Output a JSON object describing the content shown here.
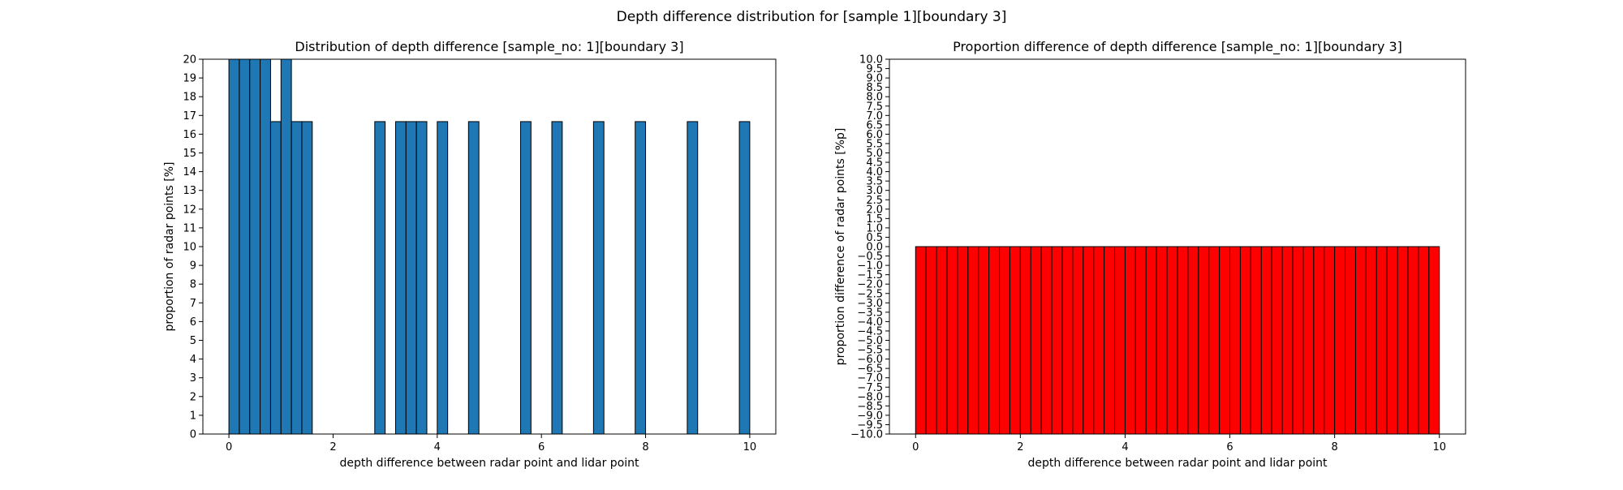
{
  "figure": {
    "suptitle": "Depth difference distribution for [sample 1][boundary 3]"
  },
  "chart_data": [
    {
      "type": "bar",
      "title": "Distribution of depth difference [sample_no: 1][boundary 3]",
      "xlabel": "depth difference between radar point and lidar point",
      "ylabel": "proportion of radar points [%]",
      "xlim": [
        -0.5,
        10.5
      ],
      "ylim": [
        0,
        20
      ],
      "xticks": [
        0,
        2,
        4,
        6,
        8,
        10
      ],
      "yticks": [
        0,
        1,
        2,
        3,
        4,
        5,
        6,
        7,
        8,
        9,
        10,
        11,
        12,
        13,
        14,
        15,
        16,
        17,
        18,
        19,
        20
      ],
      "bin_width": 0.2,
      "bin_starts": [
        0.0,
        0.2,
        0.4,
        0.6,
        0.8,
        1.0,
        1.2,
        1.4,
        2.8,
        3.2,
        3.4,
        3.6,
        4.0,
        4.6,
        5.6,
        6.2,
        7.0,
        7.8,
        8.8,
        9.8
      ],
      "values": [
        20,
        20,
        20,
        20,
        16.67,
        20,
        16.67,
        16.67,
        16.67,
        16.67,
        16.67,
        16.67,
        16.67,
        16.67,
        16.67,
        16.67,
        16.67,
        16.67,
        16.67,
        16.67
      ],
      "bar_color": "#1f77b4",
      "edge_color": "#000000",
      "grid": false,
      "legend": "none"
    },
    {
      "type": "bar",
      "title": "Proportion difference of depth difference [sample_no: 1][boundary 3]",
      "xlabel": "depth difference between radar point and lidar point",
      "ylabel": "proportion difference of radar points [%p]",
      "xlim": [
        -0.5,
        10.5
      ],
      "ylim": [
        -10,
        10
      ],
      "xticks": [
        0,
        2,
        4,
        6,
        8,
        10
      ],
      "ytick_step": 0.5,
      "bin_width": 0.2,
      "bins_range": [
        0,
        10
      ],
      "value": 0,
      "bar_color": "#ff0000",
      "edge_color": "#000000",
      "grid": false,
      "legend": "none"
    }
  ]
}
